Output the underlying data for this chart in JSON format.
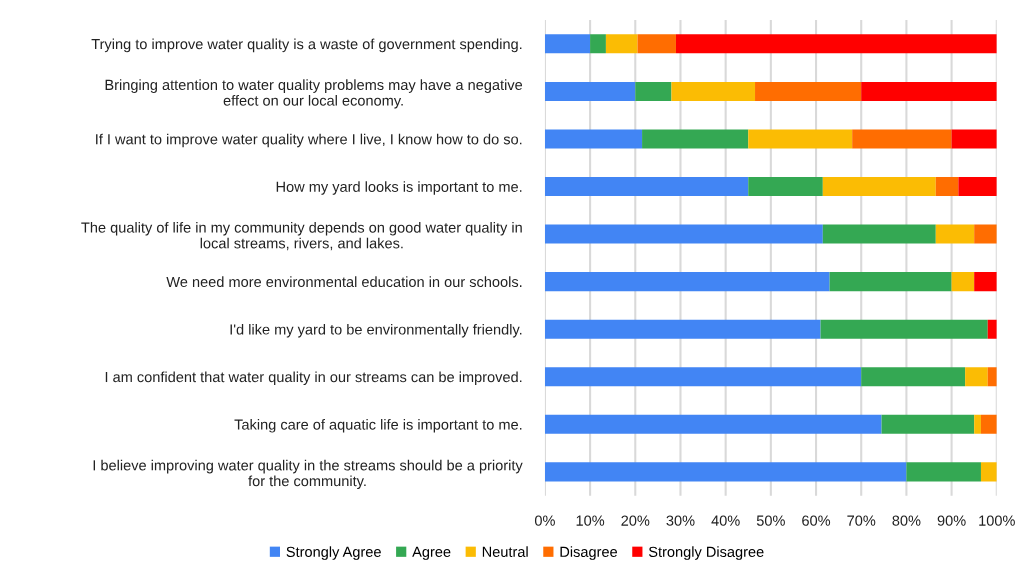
{
  "chart_data": {
    "type": "bar",
    "orientation": "horizontal",
    "stacked": true,
    "categories": [
      "Trying to improve water quality is a waste of government spending.",
      "Bringing attention to water quality problems may have a negative\neffect on our local economy.",
      "If I want to improve water quality where I live, I know how to do so.",
      "How my yard looks is important to me.",
      "The quality of life in my community depends on good water quality in\nlocal streams, rivers, and lakes.",
      "We need more environmental education in our schools.",
      "I'd like my yard to be environmentally friendly.",
      "I am confident that water quality in our streams can be improved.",
      "Taking care of aquatic life is important to me.",
      "I believe improving water quality in the streams should be a priority\nfor the community."
    ],
    "series": [
      {
        "name": "Strongly Agree",
        "color": "#4285f4",
        "values": [
          10,
          20,
          21.5,
          45,
          61.5,
          63,
          61,
          70,
          74.5,
          80
        ]
      },
      {
        "name": "Agree",
        "color": "#34a853",
        "values": [
          3.5,
          8,
          23.5,
          16.5,
          25,
          27,
          37,
          23,
          20.5,
          16.5
        ]
      },
      {
        "name": "Neutral",
        "color": "#fbbc04",
        "values": [
          7,
          18.5,
          23,
          25,
          8.5,
          5,
          0,
          5,
          1.5,
          3.5
        ]
      },
      {
        "name": "Disagree",
        "color": "#ff6d01",
        "values": [
          8.5,
          23.5,
          22,
          5,
          5,
          0,
          0,
          2,
          3.5,
          0
        ]
      },
      {
        "name": "Strongly Disagree",
        "color": "#ff0000",
        "values": [
          71,
          30,
          10,
          8.5,
          0,
          5,
          2,
          0,
          0,
          0
        ]
      }
    ],
    "xlim": [
      0,
      100
    ],
    "xticks": [
      {
        "value": 0,
        "label": "0%"
      },
      {
        "value": 10,
        "label": "10%"
      },
      {
        "value": 20,
        "label": "20%"
      },
      {
        "value": 30,
        "label": "30%"
      },
      {
        "value": 40,
        "label": "40%"
      },
      {
        "value": 50,
        "label": "50%"
      },
      {
        "value": 60,
        "label": "60%"
      },
      {
        "value": 70,
        "label": "70%"
      },
      {
        "value": 80,
        "label": "80%"
      },
      {
        "value": 90,
        "label": "90%"
      },
      {
        "value": 100,
        "label": "100%"
      }
    ],
    "grid": "x",
    "legend": "bottom"
  }
}
